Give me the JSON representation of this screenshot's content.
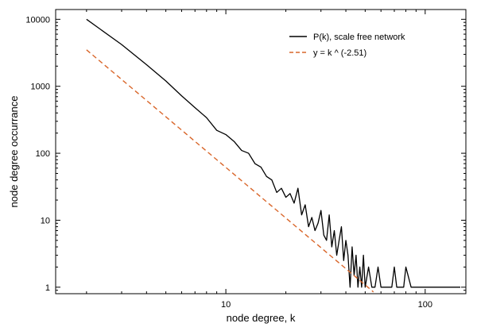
{
  "chart_data": {
    "type": "line",
    "title": "",
    "xlabel": "node degree, k",
    "ylabel": "node degree occurrance",
    "xscale": "log",
    "yscale": "log",
    "xlim": [
      1.4,
      160
    ],
    "ylim": [
      0.8,
      14000
    ],
    "grid": false,
    "legend_position": "top-right",
    "x_ticks": [
      {
        "value": 10,
        "label": "10"
      },
      {
        "value": 100,
        "label": "100"
      }
    ],
    "y_ticks": [
      {
        "value": 1,
        "label": "1"
      },
      {
        "value": 10,
        "label": "10"
      },
      {
        "value": 100,
        "label": "100"
      },
      {
        "value": 1000,
        "label": "1000"
      },
      {
        "value": 10000,
        "label": "10000"
      }
    ],
    "series": [
      {
        "name": "P(k), scale free network",
        "color": "#000000",
        "dash": "solid",
        "x": [
          2,
          3,
          4,
          5,
          6,
          7,
          8,
          9,
          10,
          11,
          12,
          13,
          14,
          15,
          16,
          17,
          18,
          19,
          20,
          21,
          22,
          23,
          24,
          25,
          26,
          27,
          28,
          29,
          30,
          31,
          32,
          33,
          34,
          35,
          36,
          37,
          38,
          39,
          40,
          41,
          42,
          43,
          44,
          45,
          46,
          47,
          48,
          49,
          50,
          52,
          54,
          56,
          58,
          60,
          62,
          64,
          66,
          68,
          70,
          72,
          74,
          76,
          78,
          80,
          85,
          90,
          95,
          100,
          110,
          120,
          130,
          140,
          150
        ],
        "y": [
          10000,
          4200,
          2100,
          1200,
          720,
          480,
          340,
          220,
          190,
          150,
          110,
          100,
          70,
          62,
          45,
          40,
          26,
          30,
          22,
          25,
          18,
          30,
          12,
          17,
          8,
          11,
          7,
          9,
          14,
          6,
          5,
          12,
          4,
          7,
          3,
          5,
          8,
          2.5,
          5,
          3,
          1,
          4,
          1.5,
          3,
          1,
          2,
          1,
          3,
          1,
          2,
          1,
          1,
          2,
          1,
          1,
          1,
          1,
          1,
          2,
          1,
          1,
          1,
          1,
          2,
          1,
          1,
          1,
          1,
          1,
          1,
          1,
          1,
          1
        ]
      },
      {
        "name": "y = k ^ (-2.51)",
        "color": "#d9662a",
        "dash": "dashed",
        "formula": "y = A * k^(-2.51)",
        "x": [
          2,
          55
        ],
        "y": [
          3500,
          0.85
        ]
      }
    ]
  }
}
